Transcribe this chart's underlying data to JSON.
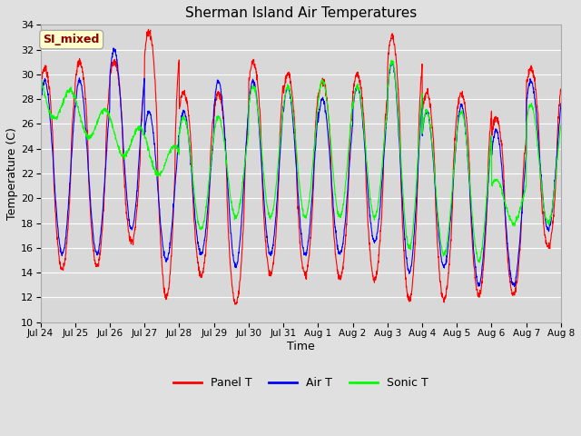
{
  "title": "Sherman Island Air Temperatures",
  "xlabel": "Time",
  "ylabel": "Temperature (C)",
  "ylim": [
    10,
    34
  ],
  "yticks": [
    10,
    12,
    14,
    16,
    18,
    20,
    22,
    24,
    26,
    28,
    30,
    32,
    34
  ],
  "background_color": "#e0e0e0",
  "plot_bg_color": "#d8d8d8",
  "grid_color": "white",
  "annotation_text": "SI_mixed",
  "annotation_fg": "#8b0000",
  "annotation_bg": "#ffffcc",
  "line_colors": [
    "red",
    "blue",
    "lime"
  ],
  "line_labels": [
    "Panel T",
    "Air T",
    "Sonic T"
  ],
  "x_tick_labels": [
    "Jul 24",
    "Jul 25",
    "Jul 26",
    "Jul 27",
    "Jul 28",
    "Jul 29",
    "Jul 30",
    "Jul 31",
    "Aug 1",
    "Aug 2",
    "Aug 3",
    "Aug 4",
    "Aug 5",
    "Aug 6",
    "Aug 7",
    "Aug 8"
  ],
  "num_days": 15,
  "points_per_day": 144
}
